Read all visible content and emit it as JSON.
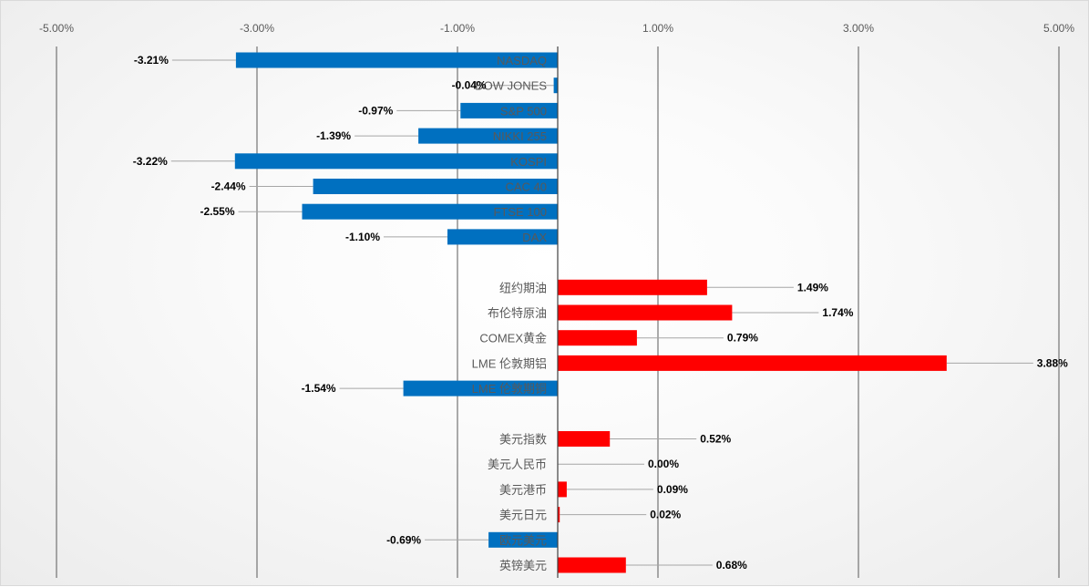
{
  "chart_data": {
    "type": "bar",
    "orientation": "horizontal",
    "xlim": [
      -5,
      5
    ],
    "xticks": [
      "-5.00%",
      "-3.00%",
      "-1.00%",
      "1.00%",
      "3.00%",
      "5.00%"
    ],
    "grid": true,
    "colors": {
      "positive": "#ff0000",
      "negative": "#0070c0",
      "gridline": "#595959",
      "leader": "#a6a6a6"
    },
    "groups": [
      {
        "categories": [
          "NASDAQ",
          "DOW JONES",
          "S&P 500",
          "NIKKI 255",
          "KOSPI",
          "CAC 40",
          "FTSE 100",
          "DAX"
        ],
        "values": [
          -3.21,
          -0.04,
          -0.97,
          -1.39,
          -3.22,
          -2.44,
          -2.55,
          -1.1
        ],
        "labels": [
          "-3.21%",
          "-0.04%",
          "-0.97%",
          "-1.39%",
          "-3.22%",
          "-2.44%",
          "-2.55%",
          "-1.10%"
        ]
      },
      {
        "categories": [
          "纽约期油",
          "布伦特原油",
          "COMEX黄金",
          "LME 伦敦期铝",
          "LME 伦敦期铜"
        ],
        "values": [
          1.49,
          1.74,
          0.79,
          3.88,
          -1.54
        ],
        "labels": [
          "1.49%",
          "1.74%",
          "0.79%",
          "3.88%",
          "-1.54%"
        ]
      },
      {
        "categories": [
          "美元指数",
          "美元人民币",
          "美元港币",
          "美元日元",
          "欧元美元",
          "英镑美元"
        ],
        "values": [
          0.52,
          0.0,
          0.09,
          0.02,
          -0.69,
          0.68
        ],
        "labels": [
          "0.52%",
          "0.00%",
          "0.09%",
          "0.02%",
          "-0.69%",
          "0.68%"
        ]
      }
    ]
  }
}
